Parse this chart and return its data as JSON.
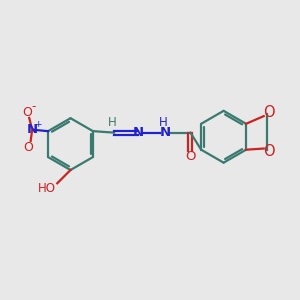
{
  "bg_color": "#e8e8e8",
  "bond_color": "#3a7a70",
  "N_color": "#2222cc",
  "O_color": "#cc2222",
  "line_width": 1.6,
  "dbo": 0.055,
  "font_size": 8.5,
  "fig_width": 3.0,
  "fig_height": 3.0,
  "xlim": [
    0,
    10
  ],
  "ylim": [
    0,
    10
  ]
}
